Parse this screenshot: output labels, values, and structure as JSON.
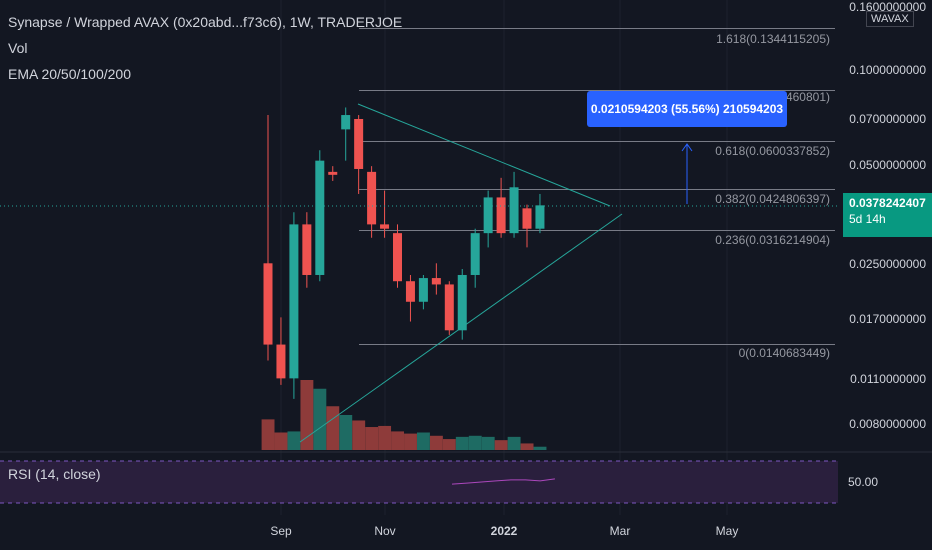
{
  "header": {
    "title": "Synapse / Wrapped AVAX (0x20abd...f73c6), 1W, TRADERJOE",
    "vol_label": "Vol",
    "ema_label": "EMA 20/50/100/200",
    "rsi_label": "RSI (14, close)"
  },
  "quote_badge": "WAVAX",
  "price_axis": {
    "labels": [
      "0.1600000000",
      "0.1000000000",
      "0.0700000000",
      "0.0500000000",
      "0.0250000000",
      "0.0170000000",
      "0.0110000000",
      "0.0080000000"
    ],
    "last_price": "0.0378242407",
    "countdown": "5d 14h"
  },
  "rsi_axis_label": "50.00",
  "time_axis": [
    "Sep",
    "Nov",
    "2022",
    "Mar",
    "May"
  ],
  "fib_levels": [
    "1.618(0.1344115205)",
    "1(0.0861460801)",
    "0.618(0.0600337852)",
    "0.382(0.0424806397)",
    "0.236(0.0316214904)",
    "0(0.0140683449)"
  ],
  "measure_label": "0.0210594203 (55.56%) 210594203",
  "colors": {
    "background": "#131722",
    "up": "#26a69a",
    "down": "#ef5350",
    "measure": "#2962ff",
    "rsi_band": "#2a1f3d",
    "rsi_line": "#ab47bc"
  },
  "chart_data": {
    "type": "candlestick",
    "title": "Synapse / Wrapped AVAX (0x20abd...f73c6), 1W, TRADERJOE",
    "candles": [
      {
        "o": 0.025,
        "h": 0.072,
        "l": 0.0125,
        "c": 0.014
      },
      {
        "o": 0.014,
        "h": 0.017,
        "l": 0.0105,
        "c": 0.011
      },
      {
        "o": 0.011,
        "h": 0.036,
        "l": 0.0095,
        "c": 0.033
      },
      {
        "o": 0.033,
        "h": 0.036,
        "l": 0.021,
        "c": 0.023
      },
      {
        "o": 0.023,
        "h": 0.056,
        "l": 0.022,
        "c": 0.052
      },
      {
        "o": 0.048,
        "h": 0.05,
        "l": 0.045,
        "c": 0.047
      },
      {
        "o": 0.065,
        "h": 0.076,
        "l": 0.052,
        "c": 0.072
      },
      {
        "o": 0.07,
        "h": 0.072,
        "l": 0.041,
        "c": 0.049
      },
      {
        "o": 0.048,
        "h": 0.05,
        "l": 0.03,
        "c": 0.033
      },
      {
        "o": 0.033,
        "h": 0.042,
        "l": 0.03,
        "c": 0.032
      },
      {
        "o": 0.031,
        "h": 0.033,
        "l": 0.021,
        "c": 0.022
      },
      {
        "o": 0.022,
        "h": 0.023,
        "l": 0.0165,
        "c": 0.019
      },
      {
        "o": 0.019,
        "h": 0.023,
        "l": 0.018,
        "c": 0.0225
      },
      {
        "o": 0.0225,
        "h": 0.025,
        "l": 0.02,
        "c": 0.0215
      },
      {
        "o": 0.0215,
        "h": 0.022,
        "l": 0.015,
        "c": 0.0155
      },
      {
        "o": 0.0155,
        "h": 0.024,
        "l": 0.0145,
        "c": 0.023
      },
      {
        "o": 0.023,
        "h": 0.032,
        "l": 0.021,
        "c": 0.031
      },
      {
        "o": 0.031,
        "h": 0.042,
        "l": 0.028,
        "c": 0.04
      },
      {
        "o": 0.04,
        "h": 0.046,
        "l": 0.03,
        "c": 0.031
      },
      {
        "o": 0.031,
        "h": 0.048,
        "l": 0.03,
        "c": 0.043
      },
      {
        "o": 0.037,
        "h": 0.038,
        "l": 0.028,
        "c": 0.032
      },
      {
        "o": 0.032,
        "h": 0.041,
        "l": 0.031,
        "c": 0.0378
      }
    ],
    "volume": [
      28,
      16,
      17,
      64,
      56,
      40,
      32,
      27,
      21,
      22,
      17,
      15,
      16,
      13,
      10,
      12,
      13,
      12,
      9,
      12,
      6,
      3
    ],
    "rsi": [
      48,
      49,
      50,
      51,
      52,
      52,
      51,
      53
    ]
  }
}
